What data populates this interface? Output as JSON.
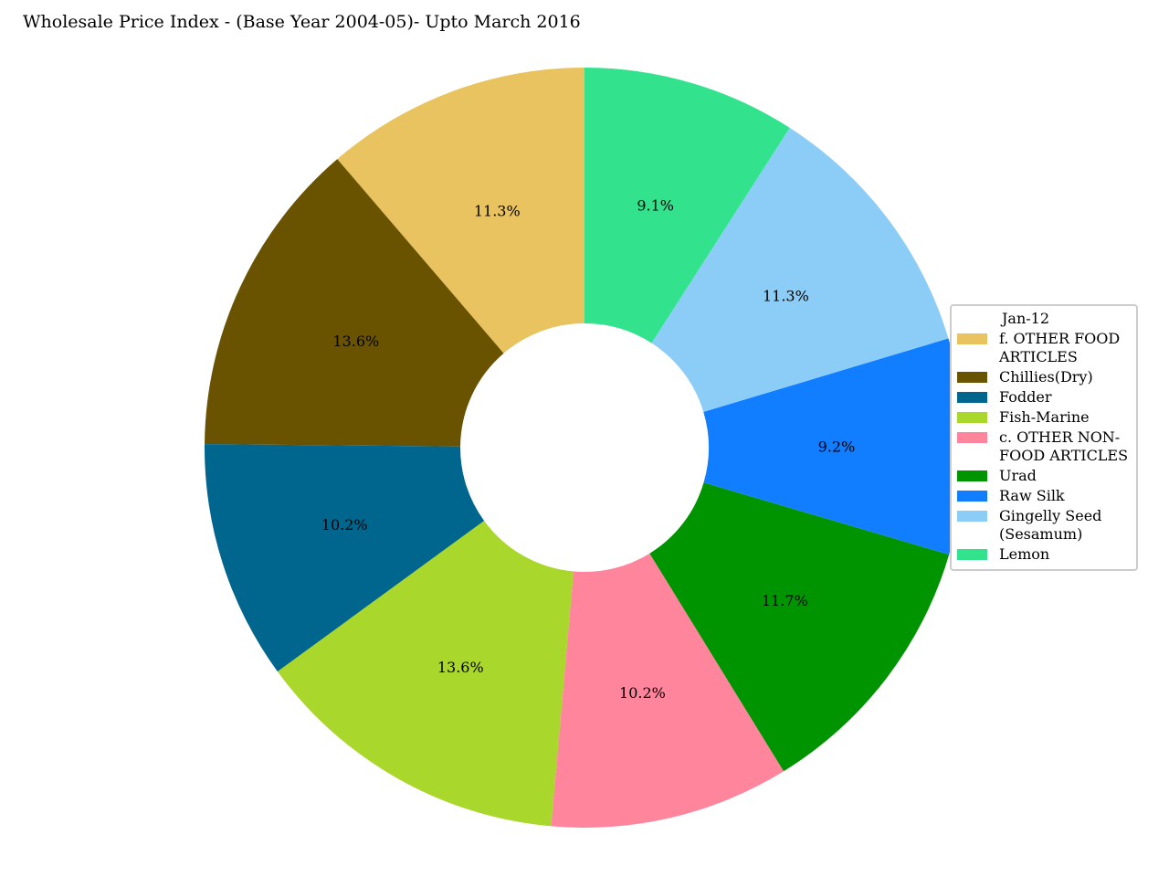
{
  "chart_data": {
    "type": "pie",
    "variant": "donut",
    "title": "Wholesale Price Index - (Base Year 2004-05)- Upto March 2016",
    "legend_title": "Jan-12",
    "legend_position": "right",
    "start_angle_deg": 90,
    "direction": "counterclockwise",
    "slices": [
      {
        "label": "f. OTHER FOOD ARTICLES",
        "legend_lines": [
          "f. OTHER FOOD",
          "ARTICLES"
        ],
        "percent": 11.3,
        "pct_text": "11.3%",
        "color": "#e8c35f"
      },
      {
        "label": "Chillies(Dry)",
        "legend_lines": [
          "Chillies(Dry)"
        ],
        "percent": 13.6,
        "pct_text": "13.6%",
        "color": "#6a5300"
      },
      {
        "label": "Fodder",
        "legend_lines": [
          "Fodder"
        ],
        "percent": 10.2,
        "pct_text": "10.2%",
        "color": "#00668d"
      },
      {
        "label": "Fish-Marine",
        "legend_lines": [
          "Fish-Marine"
        ],
        "percent": 13.6,
        "pct_text": "13.6%",
        "color": "#a9d72b"
      },
      {
        "label": "c. OTHER NON-FOOD ARTICLES",
        "legend_lines": [
          "c. OTHER NON-",
          "FOOD ARTICLES"
        ],
        "percent": 10.2,
        "pct_text": "10.2%",
        "color": "#ff859c"
      },
      {
        "label": "Urad",
        "legend_lines": [
          "Urad"
        ],
        "percent": 11.7,
        "pct_text": "11.7%",
        "color": "#009400"
      },
      {
        "label": "Raw Silk",
        "legend_lines": [
          "Raw Silk"
        ],
        "percent": 9.2,
        "pct_text": "9.2%",
        "color": "#117dff"
      },
      {
        "label": "Gingelly Seed (Sesamum)",
        "legend_lines": [
          "Gingelly Seed",
          "(Sesamum)"
        ],
        "percent": 11.3,
        "pct_text": "11.3%",
        "color": "#8ccdf8"
      },
      {
        "label": "Lemon",
        "legend_lines": [
          "Lemon"
        ],
        "percent": 9.1,
        "pct_text": "9.1%",
        "color": "#33e28d"
      }
    ]
  }
}
